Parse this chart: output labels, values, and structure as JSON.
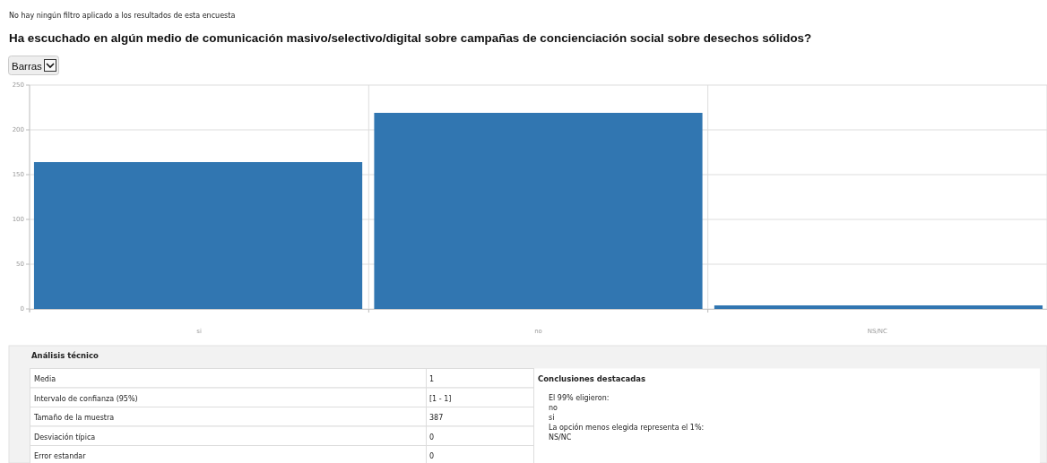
{
  "chart_data": {
    "type": "bar",
    "title": "Ha escuchado en algún medio de comunicación masivo/selectivo/digital sobre campañas de concienciación social sobre desechos sólidos?",
    "categories": [
      "si",
      "no",
      "NS/NC"
    ],
    "values": [
      164,
      219,
      4
    ],
    "color": "#3176b1",
    "ylim": [
      0,
      250
    ],
    "yticks": [
      0,
      50,
      100,
      150,
      200,
      250
    ],
    "grid": true,
    "annotations": [
      "No hay ningún filtro aplicado a los resultados de esta encuesta",
      "Barras",
      "Análisis técnico",
      "Media",
      "1",
      "Intervalo de confianza (95%)",
      "[1 - 1]",
      "Tamaño de la muestra",
      "387",
      "Desviación típica",
      "0",
      "Error estandar",
      "0",
      "Conclusiones destacadas",
      "El 99% eligieron:",
      "no",
      "si",
      "La opción menos elegida representa el 1%:",
      "NS/NC"
    ]
  }
}
